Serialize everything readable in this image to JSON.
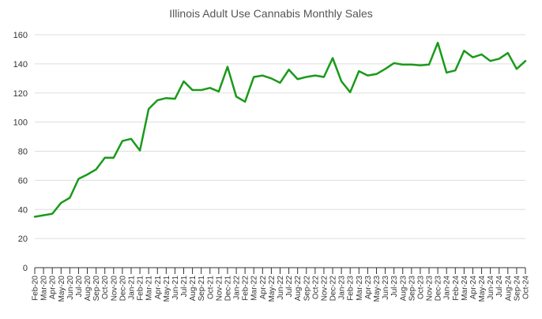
{
  "chart_data": {
    "type": "line",
    "title": "Illinois Adult Use Cannabis Monthly Sales",
    "xlabel": "",
    "ylabel": "",
    "ylim": [
      0,
      160
    ],
    "yticks": [
      0,
      20,
      40,
      60,
      80,
      100,
      120,
      140,
      160
    ],
    "grid": true,
    "series_color": "#1a9a1a",
    "categories": [
      "Feb-20",
      "Mar-20",
      "Apr-20",
      "May-20",
      "Jun-20",
      "Jul-20",
      "Aug-20",
      "Sep-20",
      "Oct-20",
      "Nov-20",
      "Dec-20",
      "Jan-21",
      "Feb-21",
      "Mar-21",
      "Apr-21",
      "May-21",
      "Jun-21",
      "Jul-21",
      "Aug-21",
      "Sep-21",
      "Oct-21",
      "Nov-21",
      "Dec-21",
      "Jan-22",
      "Feb-22",
      "Mar-22",
      "Apr-22",
      "May-22",
      "Jun-22",
      "Jul-22",
      "Aug-22",
      "Sep-22",
      "Oct-22",
      "Nov-22",
      "Dec-22",
      "Jan-23",
      "Feb-23",
      "Mar-23",
      "Apr-23",
      "May-23",
      "Jun-23",
      "Jul-23",
      "Aug-23",
      "Sep-23",
      "Oct-23",
      "Nov-23",
      "Dec-23",
      "Jan-24",
      "Feb-24",
      "Mar-24",
      "Apr-24",
      "May-24",
      "Jun-24",
      "Jul-24",
      "Aug-24",
      "Sep-24",
      "Oct-24"
    ],
    "series": [
      {
        "name": "Monthly Sales",
        "values": [
          35,
          36,
          37,
          44.5,
          48,
          61,
          64,
          67.5,
          75.5,
          75.5,
          87,
          88.5,
          80.5,
          109,
          115,
          116.5,
          116,
          128,
          122,
          122,
          123.5,
          121,
          138,
          117.5,
          114,
          131,
          132,
          130,
          127,
          136,
          129.5,
          131,
          132,
          131,
          144,
          128,
          120.5,
          135,
          132,
          133,
          136.5,
          140.5,
          139.5,
          139.5,
          139,
          139.5,
          154.5,
          134,
          135.5,
          149,
          144.5,
          146.5,
          142,
          143.5,
          147.5,
          136.5,
          142
        ]
      }
    ]
  }
}
